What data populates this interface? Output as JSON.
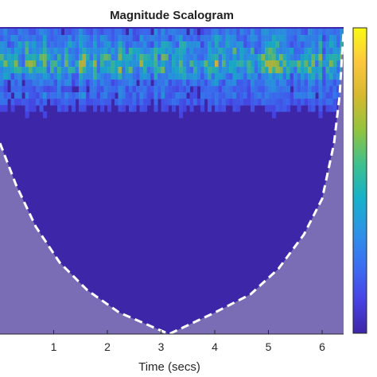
{
  "chart_data": {
    "type": "heatmap",
    "title": "Magnitude Scalogram",
    "xlabel": "Time (secs)",
    "ylabel": "",
    "xlim": [
      0,
      6.4
    ],
    "x_ticks": [
      1,
      2,
      3,
      4,
      5,
      6
    ],
    "x_tick_labels": [
      "1",
      "2",
      "3",
      "4",
      "5",
      "6"
    ],
    "colormap": "parula",
    "colormap_stops": [
      "#3e26a8",
      "#4743e4",
      "#3b6ff3",
      "#2c93e6",
      "#17b2c9",
      "#3fc08c",
      "#93c43e",
      "#d6b92f",
      "#fdc73d",
      "#f9fb15"
    ],
    "background_color": "#3e26a8",
    "cone_of_influence": {
      "apex_time": 3.15,
      "line_style": "dashed",
      "line_color": "#ffffff",
      "shade_color": "#7b6cb6"
    },
    "grid": false,
    "colorbar": "right"
  }
}
